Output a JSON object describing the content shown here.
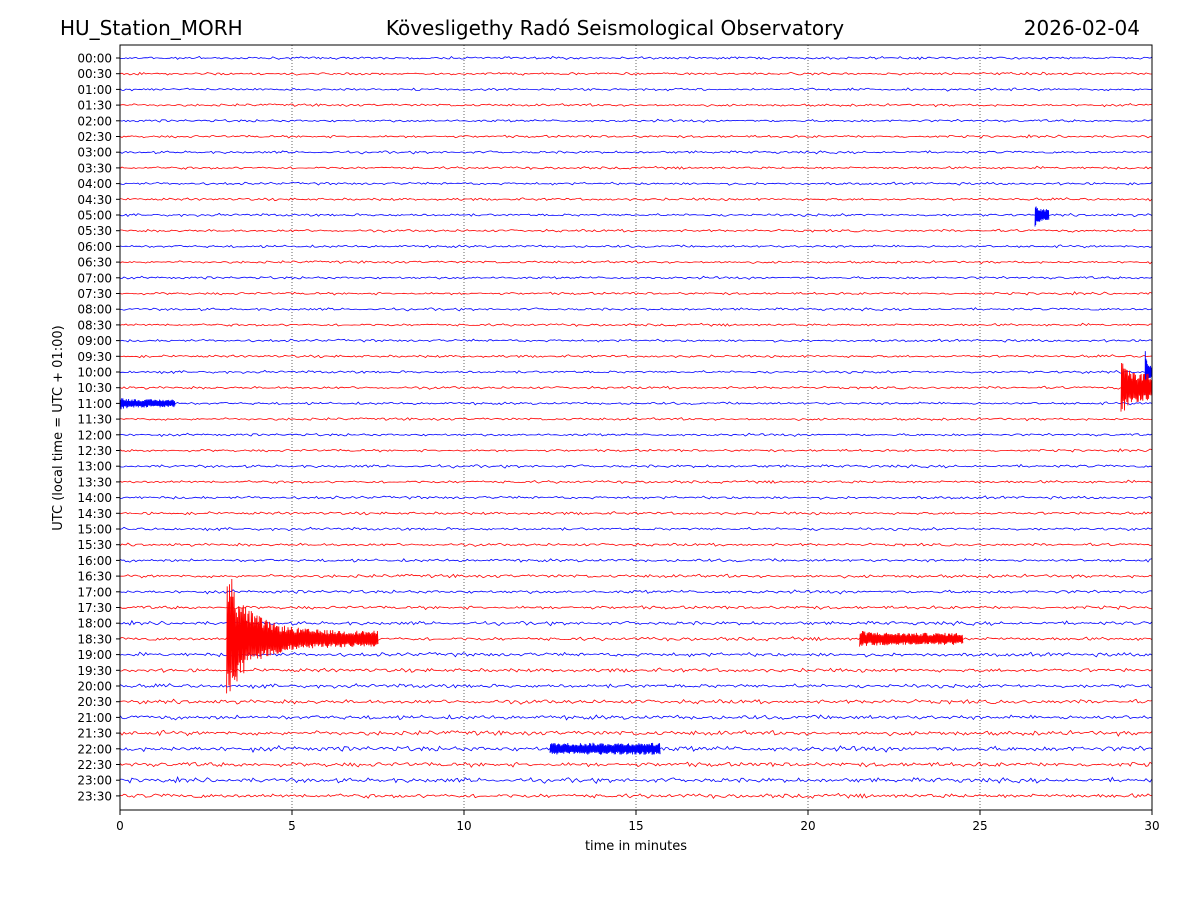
{
  "header": {
    "station": "HU_Station_MORH",
    "observatory": "Kövesligethy Radó Seismological Observatory",
    "date": "2026-02-04"
  },
  "chart_data": {
    "type": "line",
    "subtype": "helicorder",
    "xlabel": "time in minutes",
    "ylabel": "UTC (local time = UTC + 01:00)",
    "xlim": [
      0,
      30
    ],
    "x_ticks": [
      0,
      5,
      10,
      15,
      20,
      25,
      30
    ],
    "x_tick_labels": [
      "0",
      "5",
      "10",
      "15",
      "20",
      "25",
      "30"
    ],
    "vertical_gridlines_at": [
      5,
      10,
      15,
      20,
      25
    ],
    "grid_style": "dotted",
    "trace_colors": [
      "#0000ff",
      "#ff0000"
    ],
    "rows": [
      "00:00",
      "00:30",
      "01:00",
      "01:30",
      "02:00",
      "02:30",
      "03:00",
      "03:30",
      "04:00",
      "04:30",
      "05:00",
      "05:30",
      "06:00",
      "06:30",
      "07:00",
      "07:30",
      "08:00",
      "08:30",
      "09:00",
      "09:30",
      "10:00",
      "10:30",
      "11:00",
      "11:30",
      "12:00",
      "12:30",
      "13:00",
      "13:30",
      "14:00",
      "14:30",
      "15:00",
      "15:30",
      "16:00",
      "16:30",
      "17:00",
      "17:30",
      "18:00",
      "18:30",
      "19:00",
      "19:30",
      "20:00",
      "20:30",
      "21:00",
      "21:30",
      "22:00",
      "22:30",
      "23:00",
      "23:30"
    ],
    "noise_amplitude_by_row": [
      2.0,
      2.0,
      2.0,
      2.0,
      2.0,
      2.0,
      2.0,
      2.0,
      2.0,
      2.0,
      2.0,
      2.0,
      2.0,
      2.0,
      2.0,
      2.0,
      2.0,
      2.0,
      2.0,
      2.0,
      2.0,
      2.0,
      2.0,
      2.0,
      2.0,
      2.0,
      2.2,
      2.2,
      2.2,
      2.2,
      2.2,
      2.2,
      2.4,
      2.6,
      2.6,
      2.6,
      2.8,
      2.8,
      3.0,
      3.0,
      3.0,
      3.2,
      3.4,
      3.6,
      4.0,
      3.6,
      3.6,
      3.4
    ],
    "events": [
      {
        "row": "05:00",
        "start_min": 26.6,
        "end_min": 27.0,
        "peak": 12,
        "tail": 6
      },
      {
        "row": "10:00",
        "start_min": 29.8,
        "end_min": 30.0,
        "peak": 28,
        "tail": 6
      },
      {
        "row": "10:30",
        "start_min": 29.1,
        "end_min": 30.0,
        "peak": 32,
        "tail": 14
      },
      {
        "row": "11:00",
        "start_min": 0.0,
        "end_min": 1.6,
        "peak": 6,
        "tail": 4
      },
      {
        "row": "18:30",
        "start_min": 3.1,
        "end_min": 7.5,
        "peak": 62,
        "tail": 8
      },
      {
        "row": "18:30",
        "start_min": 21.5,
        "end_min": 24.5,
        "peak": 8,
        "tail": 6
      },
      {
        "row": "22:00",
        "start_min": 12.5,
        "end_min": 15.7,
        "peak": 6,
        "tail": 6
      }
    ]
  }
}
